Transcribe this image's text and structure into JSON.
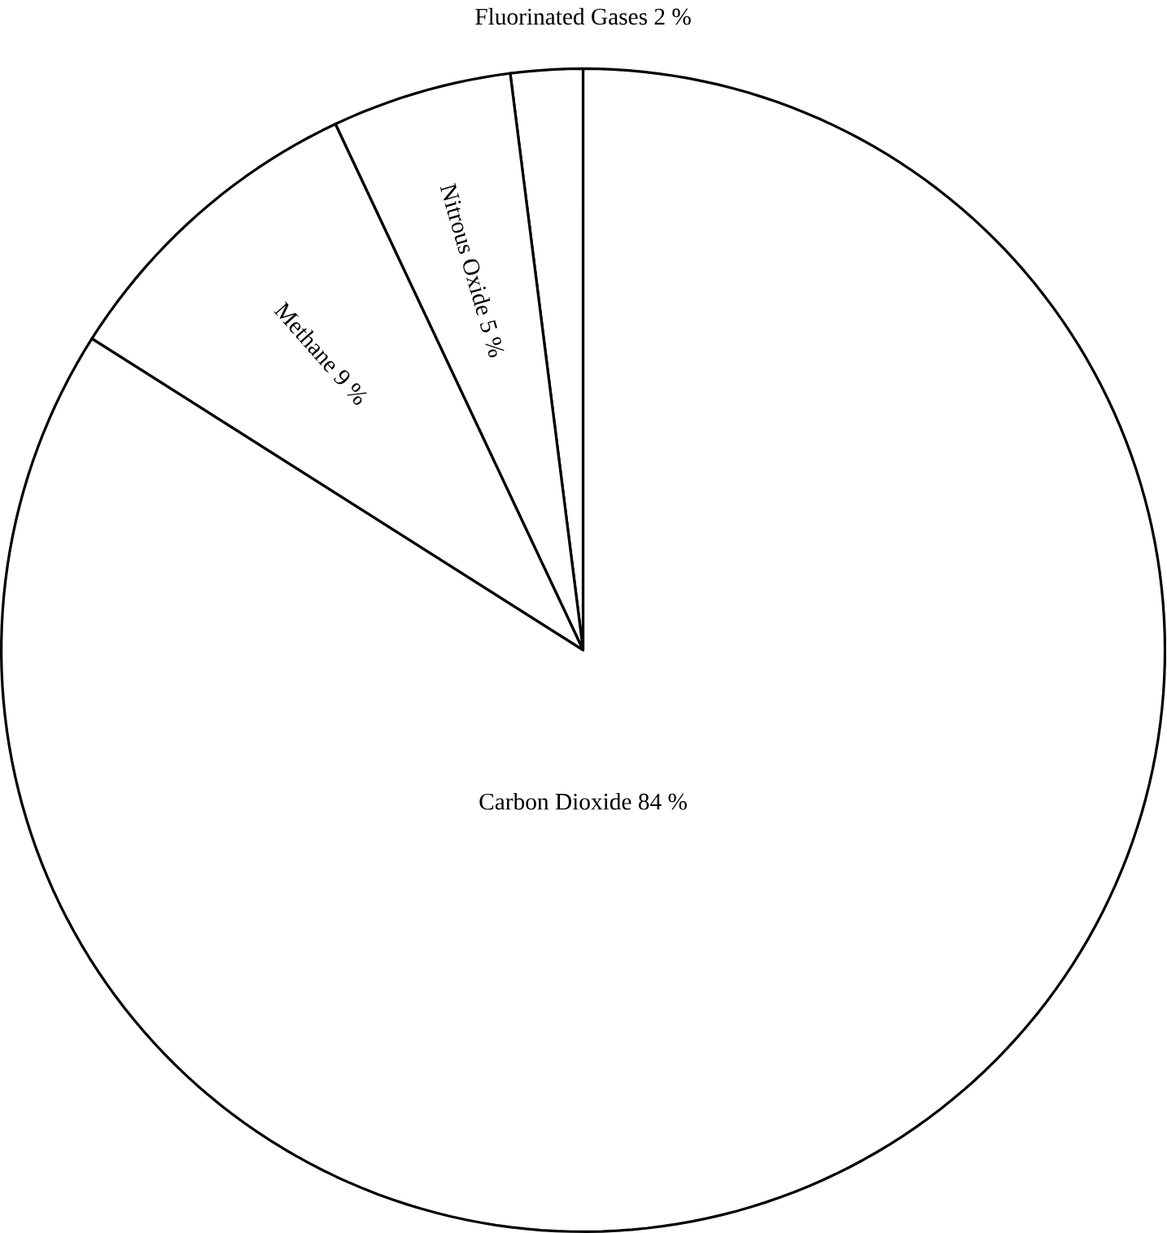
{
  "chart_data": {
    "type": "pie",
    "categories": [
      "Fluorinated Gases",
      "Nitrous Oxide",
      "Methane",
      "Carbon Dioxide"
    ],
    "values": [
      2,
      5,
      9,
      84
    ],
    "value_labels": [
      "2 %",
      "5 %",
      "9 %",
      "84 %"
    ],
    "colors": [
      "#ffffff",
      "#ffffff",
      "#ffffff",
      "#ffffff"
    ]
  }
}
